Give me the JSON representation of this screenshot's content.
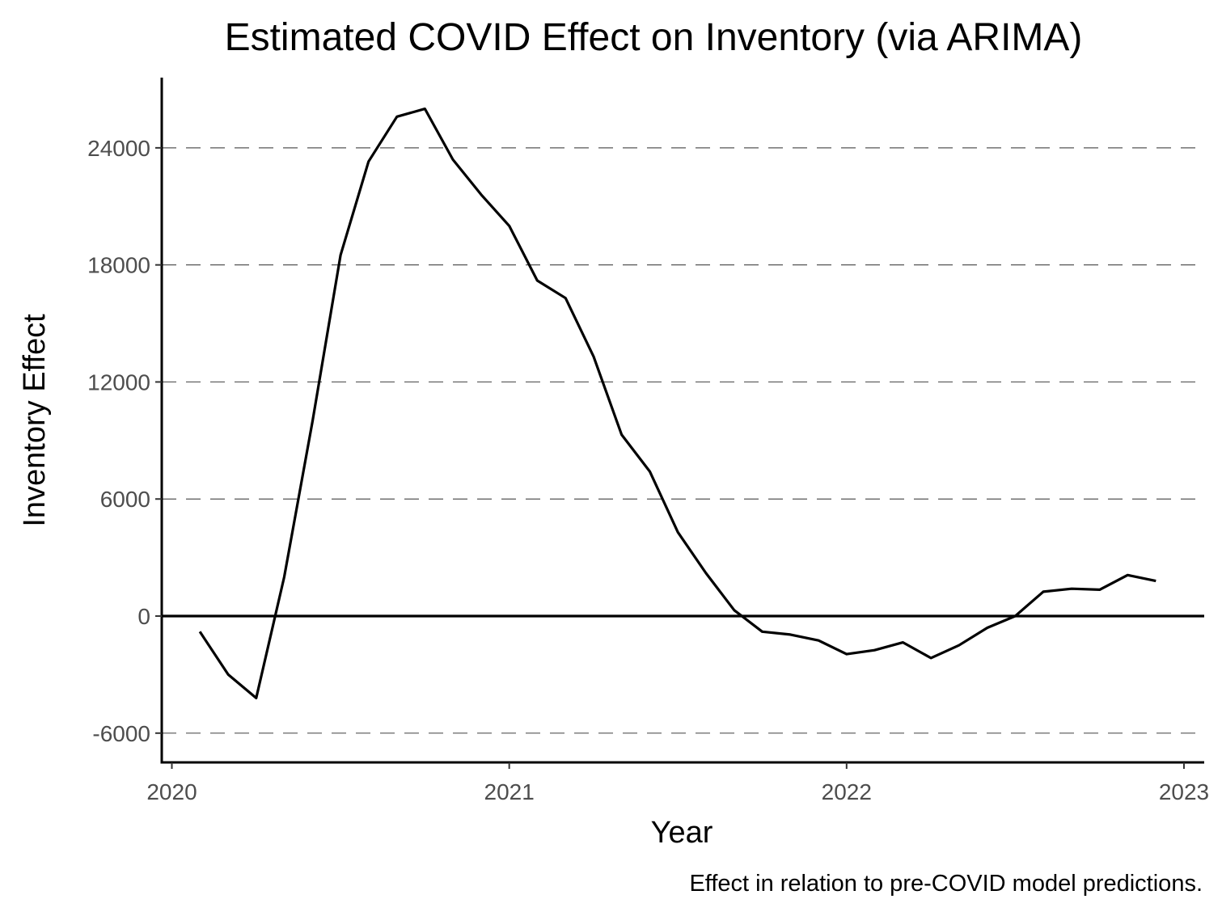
{
  "chart_data": {
    "type": "line",
    "title": "Estimated COVID Effect on Inventory (via ARIMA)",
    "xlabel": "Year",
    "ylabel": "Inventory Effect",
    "caption": "Effect in relation to pre-COVID model predictions.",
    "xlim": [
      2019.97,
      2023.06
    ],
    "ylim": [
      -7500,
      27600
    ],
    "x_ticks": [
      {
        "value": 2020,
        "label": "2020"
      },
      {
        "value": 2021,
        "label": "2021"
      },
      {
        "value": 2022,
        "label": "2022"
      },
      {
        "value": 2023,
        "label": "2023"
      }
    ],
    "y_ticks": [
      {
        "value": -6000,
        "label": "-6000"
      },
      {
        "value": 0,
        "label": "0"
      },
      {
        "value": 6000,
        "label": "6000"
      },
      {
        "value": 12000,
        "label": "12000"
      },
      {
        "value": 18000,
        "label": "18000"
      },
      {
        "value": 24000,
        "label": "24000"
      }
    ],
    "grid": "horizontal dashed",
    "reference_line": 0,
    "series": [
      {
        "color": "#000000",
        "x": [
          2020.083,
          2020.167,
          2020.25,
          2020.333,
          2020.417,
          2020.5,
          2020.583,
          2020.667,
          2020.75,
          2020.833,
          2020.917,
          2021.0,
          2021.083,
          2021.167,
          2021.25,
          2021.333,
          2021.417,
          2021.5,
          2021.583,
          2021.667,
          2021.75,
          2021.833,
          2021.917,
          2022.0,
          2022.083,
          2022.167,
          2022.25,
          2022.333,
          2022.417,
          2022.5,
          2022.583,
          2022.667,
          2022.75,
          2022.833,
          2022.917
        ],
        "values": [
          -800,
          -3000,
          -4200,
          2000,
          10000,
          18500,
          23300,
          25600,
          26000,
          23400,
          21600,
          20000,
          17200,
          16300,
          13300,
          9300,
          7400,
          4300,
          2200,
          300,
          -800,
          -950,
          -1250,
          -1950,
          -1750,
          -1350,
          -2150,
          -1500,
          -600,
          0,
          1250,
          1400,
          1350,
          2100,
          1800
        ]
      }
    ]
  }
}
